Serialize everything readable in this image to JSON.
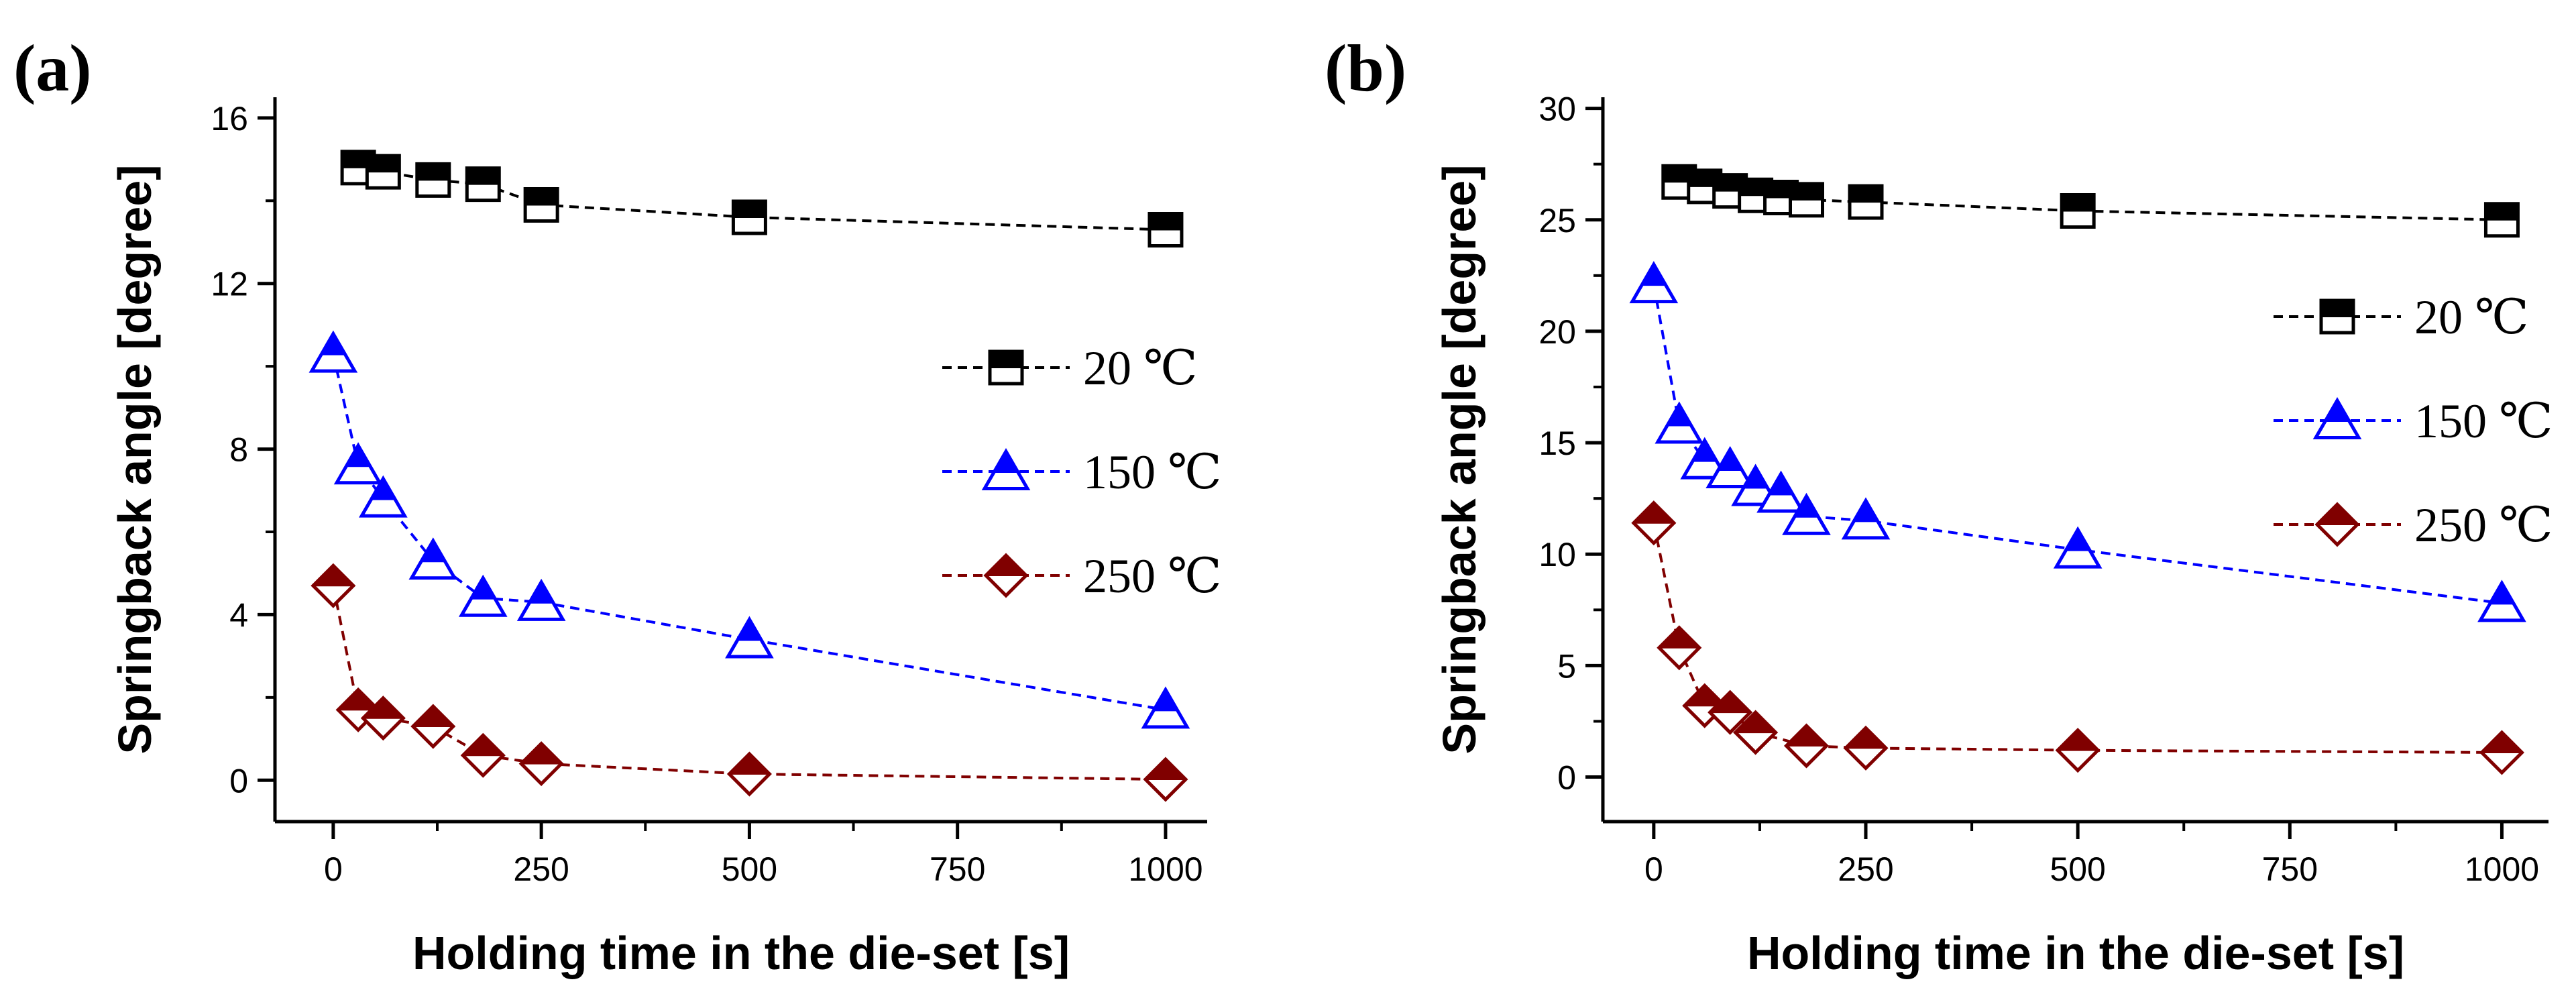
{
  "chart_data": [
    {
      "type": "line",
      "panel_label": "(a)",
      "xlabel": "Holding time in the die-set [s]",
      "ylabel": "Springback angle [degree]",
      "xlim": [
        -70,
        1050
      ],
      "ylim": [
        -1,
        16.5
      ],
      "x_ticks": [
        0,
        250,
        500,
        750,
        1000
      ],
      "y_ticks": [
        0,
        4,
        8,
        12,
        16
      ],
      "legend_position": "right",
      "series": [
        {
          "name": "20 ℃",
          "color": "#000000",
          "marker": "square-half",
          "x": [
            30,
            60,
            120,
            180,
            250,
            500,
            1000
          ],
          "values": [
            14.8,
            14.7,
            14.5,
            14.4,
            13.9,
            13.6,
            13.3
          ]
        },
        {
          "name": "150 ℃",
          "color": "#0000ff",
          "marker": "triangle-half",
          "x": [
            0,
            30,
            60,
            120,
            180,
            250,
            500,
            1000
          ],
          "values": [
            10.3,
            7.6,
            6.8,
            5.3,
            4.4,
            4.3,
            3.4,
            1.7
          ]
        },
        {
          "name": "250 ℃",
          "color": "#800000",
          "marker": "diamond-half",
          "x": [
            0,
            30,
            60,
            120,
            180,
            250,
            500,
            1000
          ],
          "values": [
            4.7,
            1.7,
            1.5,
            1.3,
            0.6,
            0.4,
            0.15,
            0.02
          ]
        }
      ]
    },
    {
      "type": "line",
      "panel_label": "(b)",
      "xlabel": "Holding time in the die-set [s]",
      "ylabel": "Springback angle [degree]",
      "xlim": [
        -60,
        1055
      ],
      "ylim": [
        -2,
        30.5
      ],
      "x_ticks": [
        0,
        250,
        500,
        750,
        1000
      ],
      "y_ticks": [
        0,
        5,
        10,
        15,
        20,
        25,
        30
      ],
      "legend_position": "right",
      "series": [
        {
          "name": "20 ℃",
          "color": "#000000",
          "marker": "square-half",
          "x": [
            30,
            60,
            90,
            120,
            150,
            180,
            250,
            500,
            1000
          ],
          "values": [
            26.7,
            26.5,
            26.3,
            26.1,
            26.0,
            25.9,
            25.8,
            25.4,
            25.0
          ]
        },
        {
          "name": "150 ℃",
          "color": "#0000ff",
          "marker": "triangle-half",
          "x": [
            0,
            30,
            60,
            90,
            120,
            150,
            180,
            250,
            500,
            1000
          ],
          "values": [
            22.1,
            15.8,
            14.2,
            13.8,
            13.0,
            12.7,
            11.7,
            11.5,
            10.2,
            7.8
          ]
        },
        {
          "name": "250 ℃",
          "color": "#800000",
          "marker": "diamond-half",
          "x": [
            0,
            30,
            60,
            90,
            120,
            180,
            250,
            500,
            1000
          ],
          "values": [
            11.4,
            5.8,
            3.2,
            2.9,
            2.0,
            1.4,
            1.3,
            1.2,
            1.1
          ]
        }
      ]
    }
  ]
}
